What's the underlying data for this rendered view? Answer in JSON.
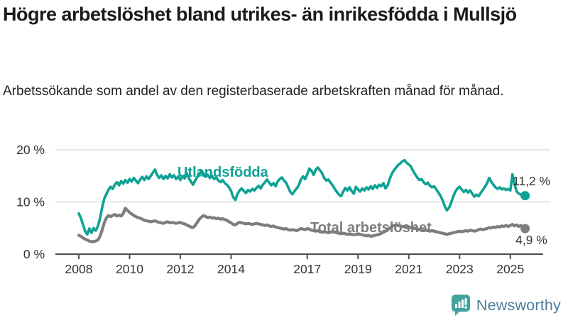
{
  "header": {
    "title": "Högre arbetslöshet bland utrikes- än inrikesfödda i Mullsjö",
    "subtitle": "Arbetssökande som andel av den registerbaserade arbetskraften månad för månad."
  },
  "chart_data": {
    "type": "line",
    "title": "Högre arbetslöshet bland utrikes- än inrikesfödda i Mullsjö",
    "x_unit": "month",
    "x_start": "2008-01",
    "x_end": "2025-08",
    "ylim": [
      0,
      21.5
    ],
    "grid": "horizontal",
    "legend_position": "inline-labels",
    "y_ticks": [
      {
        "label": "0 %",
        "value": 0
      },
      {
        "label": "10 %",
        "value": 10
      },
      {
        "label": "20 %",
        "value": 20
      }
    ],
    "x_ticks": [
      {
        "label": "2008",
        "year": 2008
      },
      {
        "label": "2010",
        "year": 2010
      },
      {
        "label": "2012",
        "year": 2012
      },
      {
        "label": "2014",
        "year": 2014
      },
      {
        "label": "2017",
        "year": 2017
      },
      {
        "label": "2019",
        "year": 2019
      },
      {
        "label": "2021",
        "year": 2021
      },
      {
        "label": "2023",
        "year": 2023
      },
      {
        "label": "2025",
        "year": 2025
      }
    ],
    "series": [
      {
        "name": "Utlandsfödda",
        "color": "#0da295",
        "end_label": "11,2 %",
        "end_value": 11.2,
        "values": [
          7.8,
          6.9,
          5.6,
          4.4,
          3.8,
          4.9,
          4.1,
          5.0,
          4.5,
          5.3,
          6.8,
          8.9,
          10.6,
          11.5,
          12.3,
          12.9,
          12.5,
          13.3,
          13.8,
          13.2,
          14.0,
          13.5,
          14.2,
          13.7,
          14.4,
          13.9,
          14.6,
          14.1,
          13.6,
          14.3,
          14.8,
          14.2,
          14.9,
          14.4,
          15.0,
          15.6,
          16.2,
          15.2,
          14.6,
          15.1,
          14.4,
          15.0,
          14.5,
          15.3,
          14.7,
          15.1,
          14.4,
          14.9,
          14.2,
          15.0,
          14.5,
          15.5,
          14.6,
          13.9,
          13.3,
          14.1,
          14.8,
          15.3,
          16.0,
          15.4,
          14.8,
          15.2,
          14.6,
          15.0,
          14.4,
          14.7,
          14.1,
          13.8,
          14.2,
          13.6,
          13.3,
          12.8,
          12.1,
          10.9,
          10.4,
          11.5,
          12.2,
          12.6,
          12.1,
          11.7,
          12.3,
          12.0,
          12.5,
          12.2,
          12.7,
          13.1,
          12.6,
          13.3,
          13.8,
          14.3,
          13.7,
          13.2,
          13.6,
          13.0,
          13.9,
          14.4,
          14.7,
          14.1,
          13.7,
          12.8,
          11.9,
          11.5,
          12.1,
          12.6,
          13.2,
          14.3,
          14.9,
          14.4,
          15.3,
          16.4,
          16.0,
          15.2,
          16.2,
          16.6,
          16.1,
          15.5,
          14.6,
          14.1,
          14.3,
          13.7,
          13.2,
          12.5,
          11.9,
          11.4,
          11.1,
          12.0,
          12.7,
          12.2,
          12.8,
          12.1,
          11.6,
          12.9,
          12.4,
          12.0,
          12.6,
          12.2,
          12.8,
          12.4,
          13.0,
          12.5,
          13.2,
          12.7,
          13.3,
          13.0,
          13.6,
          12.6,
          13.2,
          14.4,
          15.4,
          16.1,
          16.6,
          17.1,
          17.4,
          17.8,
          18.0,
          17.5,
          17.2,
          16.8,
          16.0,
          15.3,
          14.7,
          14.2,
          14.4,
          13.8,
          13.4,
          13.7,
          13.1,
          12.8,
          13.0,
          12.4,
          11.8,
          11.2,
          10.3,
          9.2,
          8.4,
          8.9,
          9.8,
          11.0,
          12.0,
          12.6,
          12.9,
          12.4,
          11.9,
          12.3,
          11.8,
          12.2,
          11.6,
          11.0,
          11.4,
          11.1,
          11.7,
          12.3,
          12.9,
          13.6,
          14.6,
          13.9,
          13.3,
          12.8,
          12.5,
          12.8,
          12.4,
          12.6,
          12.3,
          12.5,
          12.2,
          15.3,
          13.4,
          12.0,
          11.6,
          11.4,
          11.3,
          11.2
        ]
      },
      {
        "name": "Total arbetslöshet",
        "color": "#7d7d7d",
        "end_label": "4,9 %",
        "end_value": 4.9,
        "values": [
          3.6,
          3.4,
          3.1,
          2.9,
          2.7,
          2.5,
          2.4,
          2.4,
          2.5,
          2.7,
          3.4,
          4.6,
          6.0,
          6.9,
          7.4,
          7.2,
          7.4,
          7.6,
          7.3,
          7.5,
          7.3,
          7.8,
          8.8,
          8.4,
          8.0,
          7.7,
          7.4,
          7.2,
          7.0,
          6.9,
          6.7,
          6.5,
          6.4,
          6.3,
          6.2,
          6.3,
          6.4,
          6.2,
          6.1,
          6.0,
          5.9,
          6.1,
          6.2,
          6.0,
          6.1,
          6.0,
          5.9,
          6.0,
          6.1,
          5.9,
          5.8,
          5.6,
          5.4,
          5.2,
          5.1,
          5.5,
          6.1,
          6.7,
          7.1,
          7.4,
          7.2,
          7.0,
          7.1,
          6.9,
          7.0,
          6.8,
          6.9,
          6.7,
          6.8,
          6.6,
          6.5,
          6.2,
          6.0,
          5.7,
          5.6,
          5.9,
          6.1,
          6.0,
          5.9,
          5.8,
          5.9,
          5.8,
          5.7,
          5.8,
          5.9,
          5.8,
          5.7,
          5.6,
          5.5,
          5.6,
          5.4,
          5.3,
          5.4,
          5.2,
          5.1,
          5.0,
          4.9,
          4.8,
          4.9,
          4.7,
          4.6,
          4.7,
          4.6,
          4.5,
          4.7,
          4.9,
          4.8,
          4.7,
          4.9,
          4.8,
          4.6,
          4.5,
          4.4,
          4.5,
          4.3,
          4.2,
          4.3,
          4.2,
          4.1,
          4.2,
          4.3,
          4.2,
          4.1,
          4.0,
          3.9,
          4.0,
          3.9,
          3.8,
          3.9,
          3.8,
          3.7,
          3.8,
          3.9,
          3.8,
          3.7,
          3.6,
          3.5,
          3.6,
          3.4,
          3.5,
          3.6,
          3.7,
          3.8,
          4.0,
          4.2,
          4.4,
          4.7,
          5.0,
          5.3,
          5.5,
          5.6,
          5.5,
          5.4,
          5.3,
          5.2,
          5.1,
          5.2,
          5.1,
          5.0,
          4.9,
          4.8,
          4.7,
          4.6,
          4.5,
          4.6,
          4.5,
          4.4,
          4.5,
          4.4,
          4.3,
          4.2,
          4.1,
          4.0,
          3.9,
          3.8,
          3.9,
          4.0,
          4.1,
          4.2,
          4.3,
          4.4,
          4.3,
          4.4,
          4.5,
          4.4,
          4.6,
          4.5,
          4.4,
          4.5,
          4.7,
          4.8,
          4.7,
          4.8,
          4.9,
          5.1,
          5.0,
          5.2,
          5.1,
          5.3,
          5.2,
          5.4,
          5.3,
          5.5,
          5.3,
          5.5,
          5.7,
          5.4,
          5.6,
          5.3,
          5.5,
          5.1,
          4.9
        ]
      }
    ],
    "colors": {
      "grid": "#dcdcdc",
      "axis": "#4d4d4d",
      "tick_text": "#333333"
    }
  },
  "footer": {
    "brand": "Newsworthy",
    "brand_color": "#4d7c9b",
    "icon_color": "#43a39c"
  }
}
